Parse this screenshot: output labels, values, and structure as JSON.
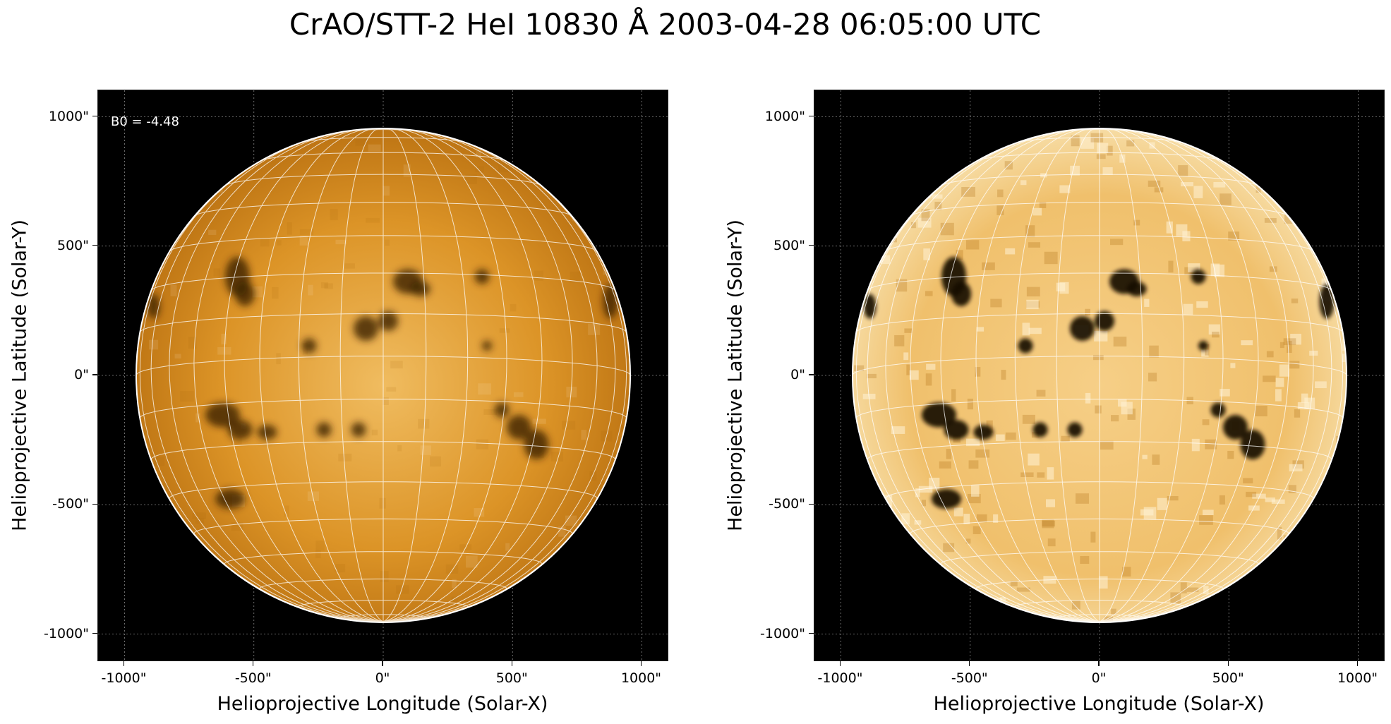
{
  "title": "CrAO/STT-2 HeI 10830 Å 2003-04-28 06:05:00 UTC",
  "annotation": "B0 = -4.48",
  "colors": {
    "sun_base": "#d88a1a",
    "sun_bright": "#f2c470",
    "background": "#000000",
    "grid": "#ffffff"
  },
  "panels": [
    {
      "name": "left",
      "x_label": "Helioprojective Longitude (Solar-X)",
      "y_label": "Helioprojective Latitude (Solar-Y)",
      "x_ticks": [
        "-1000\"",
        "-500\"",
        "0\"",
        "500\"",
        "1000\""
      ],
      "y_ticks": [
        "1000\"",
        "500\"",
        "0\"",
        "-500\"",
        "-1000\""
      ],
      "contrast": "normal"
    },
    {
      "name": "right",
      "x_label": "Helioprojective Longitude (Solar-X)",
      "y_label": "Helioprojective Latitude (Solar-Y)",
      "x_ticks": [
        "-1000\"",
        "-500\"",
        "0\"",
        "500\"",
        "1000\""
      ],
      "y_ticks": [
        "1000\"",
        "500\"",
        "0\"",
        "-500\"",
        "-1000\""
      ],
      "contrast": "enhanced"
    }
  ]
}
